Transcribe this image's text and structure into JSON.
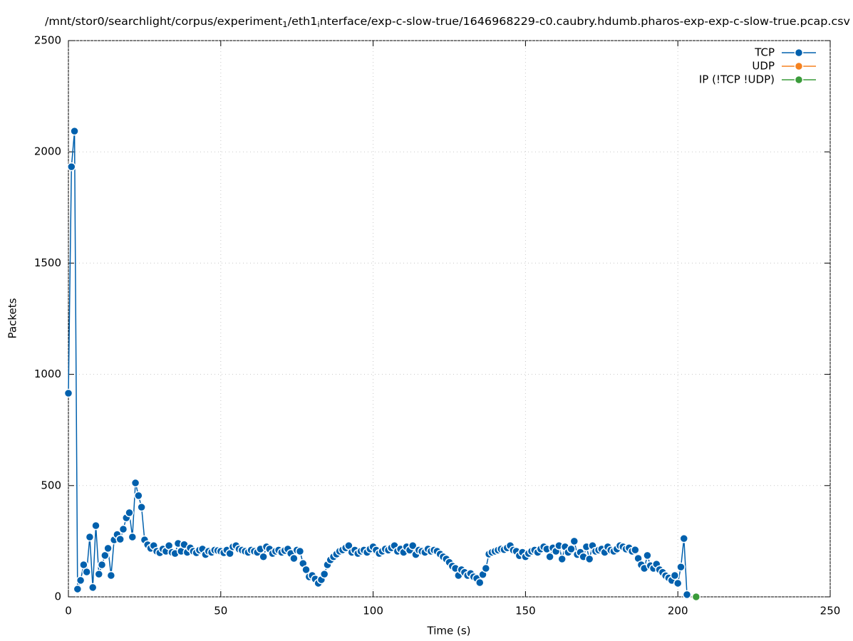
{
  "chart_data": {
    "type": "line",
    "title": [
      {
        "text": "/mnt/stor0/searchlight/corpus/experiment"
      },
      {
        "text": "1",
        "subscript": true
      },
      {
        "text": "/eth1"
      },
      {
        "text": "i",
        "subscript": true
      },
      {
        "text": "nterface/exp-c-slow-true/1646968229-c0.caubry.hdumb.pharos-exp-exp-c-slow-true.pcap.csv"
      }
    ],
    "xlabel": "Time (s)",
    "ylabel": "Packets",
    "xlim": [
      0,
      250
    ],
    "xticks": [
      0,
      50,
      100,
      150,
      200,
      250
    ],
    "ylim": [
      0,
      2500
    ],
    "yticks": [
      0,
      500,
      1000,
      1500,
      2000,
      2500
    ],
    "grid": true,
    "legend": "top-right",
    "series": [
      {
        "name": "TCP",
        "color": "#0060ad",
        "x": [
          0,
          1,
          2,
          3,
          4,
          5,
          6,
          7,
          8,
          9,
          10,
          11,
          12,
          13,
          14,
          15,
          16,
          17,
          18,
          19,
          20,
          21,
          22,
          23,
          24,
          25,
          26,
          27,
          28,
          29,
          30,
          31,
          32,
          33,
          34,
          35,
          36,
          37,
          38,
          39,
          40,
          41,
          42,
          43,
          44,
          45,
          46,
          47,
          48,
          49,
          50,
          51,
          52,
          53,
          54,
          55,
          56,
          57,
          58,
          59,
          60,
          61,
          62,
          63,
          64,
          65,
          66,
          67,
          68,
          69,
          70,
          71,
          72,
          73,
          74,
          75,
          76,
          77,
          78,
          79,
          80,
          81,
          82,
          83,
          84,
          85,
          86,
          87,
          88,
          89,
          90,
          91,
          92,
          93,
          94,
          95,
          96,
          97,
          98,
          99,
          100,
          101,
          102,
          103,
          104,
          105,
          106,
          107,
          108,
          109,
          110,
          111,
          112,
          113,
          114,
          115,
          116,
          117,
          118,
          119,
          120,
          121,
          122,
          123,
          124,
          125,
          126,
          127,
          128,
          129,
          130,
          131,
          132,
          133,
          134,
          135,
          136,
          137,
          138,
          139,
          140,
          141,
          142,
          143,
          144,
          145,
          146,
          147,
          148,
          149,
          150,
          151,
          152,
          153,
          154,
          155,
          156,
          157,
          158,
          159,
          160,
          161,
          162,
          163,
          164,
          165,
          166,
          167,
          168,
          169,
          170,
          171,
          172,
          173,
          174,
          175,
          176,
          177,
          178,
          179,
          180,
          181,
          182,
          183,
          184,
          185,
          186,
          187,
          188,
          189,
          190,
          191,
          192,
          193,
          194,
          195,
          196,
          197,
          198,
          199,
          200,
          201,
          202,
          203
        ],
        "values": [
          915,
          1933,
          2093,
          35,
          74,
          144,
          112,
          269,
          42,
          320,
          102,
          144,
          186,
          218,
          96,
          256,
          280,
          259,
          304,
          355,
          378,
          269,
          512,
          455,
          403,
          256,
          234,
          218,
          230,
          205,
          198,
          215,
          205,
          230,
          200,
          195,
          240,
          205,
          235,
          200,
          220,
          205,
          198,
          210,
          215,
          190,
          205,
          200,
          210,
          208,
          205,
          198,
          210,
          195,
          225,
          230,
          215,
          210,
          205,
          200,
          210,
          205,
          200,
          215,
          180,
          225,
          215,
          195,
          205,
          210,
          200,
          208,
          215,
          195,
          173,
          210,
          205,
          150,
          122,
          90,
          96,
          80,
          61,
          77,
          102,
          144,
          166,
          180,
          192,
          205,
          211,
          220,
          230,
          200,
          210,
          195,
          205,
          210,
          200,
          215,
          225,
          210,
          195,
          205,
          215,
          210,
          220,
          230,
          205,
          215,
          200,
          225,
          210,
          230,
          190,
          210,
          205,
          200,
          215,
          205,
          210,
          205,
          192,
          180,
          170,
          155,
          138,
          128,
          96,
          122,
          110,
          96,
          105,
          90,
          83,
          64,
          100,
          128,
          192,
          200,
          205,
          210,
          215,
          212,
          220,
          230,
          210,
          205,
          185,
          200,
          180,
          195,
          205,
          210,
          200,
          215,
          225,
          215,
          180,
          220,
          205,
          230,
          170,
          225,
          200,
          215,
          250,
          190,
          200,
          180,
          225,
          170,
          230,
          205,
          210,
          215,
          200,
          225,
          210,
          205,
          215,
          230,
          225,
          215,
          220,
          205,
          211,
          173,
          144,
          128,
          186,
          140,
          128,
          147,
          122,
          110,
          95,
          85,
          74,
          96,
          61,
          134,
          262,
          10
        ]
      },
      {
        "name": "UDP",
        "color": "#f58220",
        "x": [
          206
        ],
        "values": [
          0
        ]
      },
      {
        "name": "IP (!TCP  !UDP)",
        "color": "#3a9b3a",
        "x": [
          206
        ],
        "values": [
          0
        ]
      }
    ]
  }
}
